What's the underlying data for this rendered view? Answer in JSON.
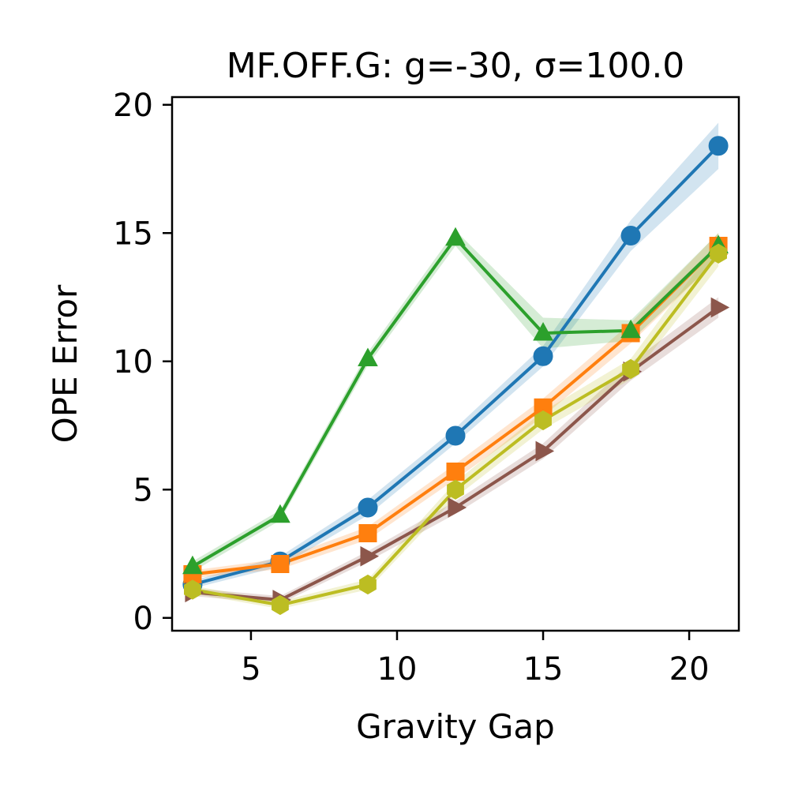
{
  "chart_data": {
    "type": "line",
    "title": "MF.OFF.G: g=-30, σ=100.0",
    "xlabel": "Gravity Gap",
    "ylabel": "OPE Error",
    "xlim": [
      2.3,
      21.7
    ],
    "ylim": [
      -0.5,
      20.3
    ],
    "xticks": [
      5,
      10,
      15,
      20
    ],
    "yticks": [
      0,
      5,
      10,
      15,
      20
    ],
    "x": [
      3,
      6,
      9,
      12,
      15,
      18,
      21
    ],
    "series": [
      {
        "name": "blue-circle",
        "color": "#1f77b4",
        "marker": "circle",
        "values": [
          1.3,
          2.2,
          4.3,
          7.1,
          10.2,
          14.9,
          18.4
        ],
        "band": [
          0.15,
          0.2,
          0.3,
          0.3,
          0.4,
          0.6,
          0.9
        ]
      },
      {
        "name": "orange-square",
        "color": "#ff7f0e",
        "marker": "square",
        "values": [
          1.7,
          2.1,
          3.3,
          5.7,
          8.2,
          11.1,
          14.5
        ],
        "band": [
          0.15,
          0.2,
          0.25,
          0.3,
          0.35,
          0.4,
          0.5
        ]
      },
      {
        "name": "green-triangle",
        "color": "#2ca02c",
        "marker": "triangle-up",
        "values": [
          2.0,
          4.0,
          10.1,
          14.8,
          11.1,
          11.2,
          14.5
        ],
        "band": [
          0.2,
          0.2,
          0.25,
          0.3,
          0.6,
          0.4,
          0.5
        ]
      },
      {
        "name": "brown-triangle-right",
        "color": "#8c564b",
        "marker": "triangle-right",
        "values": [
          1.0,
          0.7,
          2.4,
          4.3,
          6.5,
          9.6,
          12.1
        ],
        "band": [
          0.15,
          0.15,
          0.2,
          0.25,
          0.3,
          0.35,
          0.4
        ]
      },
      {
        "name": "olive-hexagon",
        "color": "#bcbd22",
        "marker": "hexagon",
        "values": [
          1.1,
          0.5,
          1.3,
          5.0,
          7.7,
          9.7,
          14.2
        ],
        "band": [
          0.15,
          0.15,
          0.2,
          0.3,
          0.35,
          0.4,
          0.5
        ]
      }
    ]
  }
}
